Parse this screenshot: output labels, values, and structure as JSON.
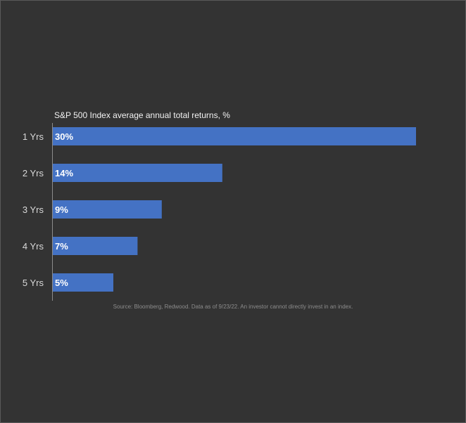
{
  "chart_data": {
    "type": "bar",
    "orientation": "horizontal",
    "title": "S&P 500 Index average annual total returns, %",
    "categories": [
      "1 Yrs",
      "2 Yrs",
      "3 Yrs",
      "4 Yrs",
      "5 Yrs"
    ],
    "values": [
      30,
      14,
      9,
      7,
      5
    ],
    "value_labels": [
      "30%",
      "14%",
      "9%",
      "7%",
      "5%"
    ],
    "xlabel": "",
    "ylabel": "",
    "xlim": [
      0,
      30
    ],
    "grid": false,
    "legend": "none",
    "colors": {
      "bar": "#4472c4",
      "background": "#333333"
    },
    "source": "Source: Bloomberg, Redwood. Data as of 9/23/22. An investor cannot directly invest in an index."
  }
}
